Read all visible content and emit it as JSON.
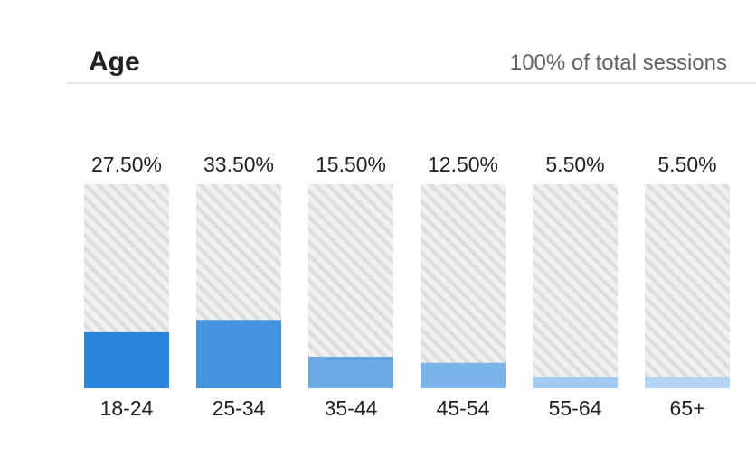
{
  "header": {
    "title": "Age",
    "subtitle": "100% of total sessions"
  },
  "chart_data": {
    "type": "bar",
    "title": "Age",
    "subtitle": "100% of total sessions",
    "categories": [
      "18-24",
      "25-34",
      "35-44",
      "45-54",
      "55-64",
      "65+"
    ],
    "values": [
      27.5,
      33.5,
      15.5,
      12.5,
      5.5,
      5.5
    ],
    "value_labels": [
      "27.50%",
      "33.50%",
      "15.50%",
      "12.50%",
      "5.50%",
      "5.50%"
    ],
    "ylim": [
      0,
      100
    ],
    "grid": false,
    "bar_colors": [
      "#2a84dc",
      "#4594e0",
      "#6ba9e6",
      "#7ab4ea",
      "#a3caf0",
      "#b3d4f3"
    ],
    "track_pattern_colors": [
      "#f0f0f0",
      "#dddddd"
    ]
  }
}
